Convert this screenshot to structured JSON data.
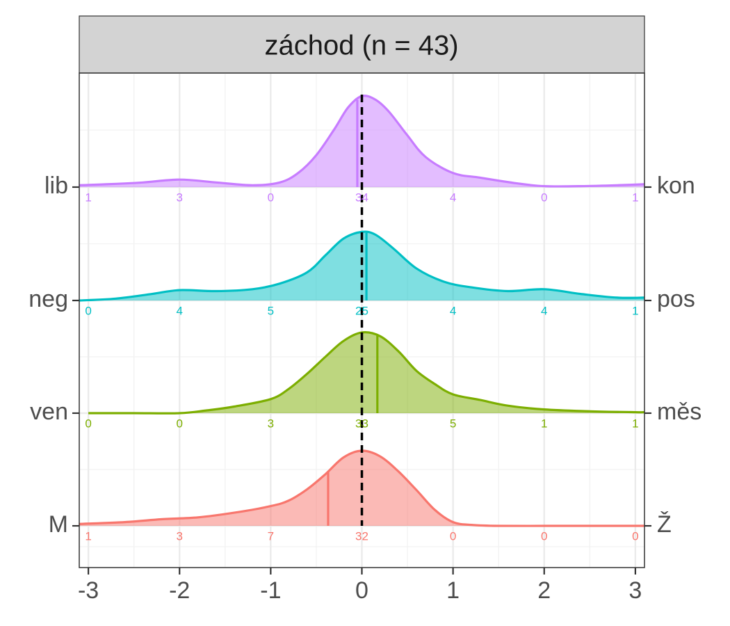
{
  "chart_data": {
    "type": "ridgeline",
    "title": "záchod (n = 43)",
    "xlim": [
      -3.1,
      3.1
    ],
    "x_ticks": [
      -3,
      -2,
      -1,
      0,
      1,
      2,
      3
    ],
    "x_tick_labels": [
      "-3",
      "-2",
      "-1",
      "0",
      "1",
      "2",
      "3"
    ],
    "grid": true,
    "reference_line": {
      "x": 0,
      "style": "dashed",
      "color": "#000000"
    },
    "series": [
      {
        "left_label": "lib",
        "right_label": "kon",
        "color": "#C77CFF",
        "mean": -0.05,
        "count_positions": [
          -3,
          -2,
          -1,
          0,
          1,
          2,
          3
        ],
        "counts": [
          "1",
          "3",
          "0",
          "34",
          "4",
          "0",
          "1"
        ],
        "density": [
          [
            -3.1,
            0.02
          ],
          [
            -2.8,
            0.03
          ],
          [
            -2.4,
            0.05
          ],
          [
            -2,
            0.08
          ],
          [
            -1.6,
            0.05
          ],
          [
            -1.2,
            0.02
          ],
          [
            -0.9,
            0.05
          ],
          [
            -0.7,
            0.15
          ],
          [
            -0.5,
            0.34
          ],
          [
            -0.3,
            0.62
          ],
          [
            -0.15,
            0.85
          ],
          [
            0,
            0.97
          ],
          [
            0.15,
            0.93
          ],
          [
            0.3,
            0.8
          ],
          [
            0.5,
            0.55
          ],
          [
            0.7,
            0.32
          ],
          [
            1,
            0.15
          ],
          [
            1.3,
            0.1
          ],
          [
            1.7,
            0.04
          ],
          [
            2,
            0.01
          ],
          [
            2.4,
            0.01
          ],
          [
            2.8,
            0.02
          ],
          [
            3.1,
            0.03
          ]
        ]
      },
      {
        "left_label": "neg",
        "right_label": "pos",
        "color": "#00BFC4",
        "mean": 0.05,
        "count_positions": [
          -3,
          -2,
          -1,
          0,
          1,
          2,
          3
        ],
        "counts": [
          "0",
          "4",
          "5",
          "25",
          "4",
          "4",
          "1"
        ],
        "density": [
          [
            -3.1,
            0
          ],
          [
            -2.7,
            0.02
          ],
          [
            -2.3,
            0.07
          ],
          [
            -2,
            0.11
          ],
          [
            -1.6,
            0.1
          ],
          [
            -1.2,
            0.12
          ],
          [
            -0.9,
            0.18
          ],
          [
            -0.6,
            0.3
          ],
          [
            -0.4,
            0.48
          ],
          [
            -0.2,
            0.66
          ],
          [
            0,
            0.73
          ],
          [
            0.15,
            0.7
          ],
          [
            0.35,
            0.55
          ],
          [
            0.6,
            0.34
          ],
          [
            0.9,
            0.2
          ],
          [
            1.2,
            0.14
          ],
          [
            1.6,
            0.1
          ],
          [
            2,
            0.12
          ],
          [
            2.4,
            0.07
          ],
          [
            2.8,
            0.03
          ],
          [
            3.1,
            0.03
          ]
        ]
      },
      {
        "left_label": "ven",
        "right_label": "měs",
        "color": "#7CAE00",
        "mean": 0.17,
        "count_positions": [
          -3,
          -2,
          -1,
          0,
          1,
          2,
          3
        ],
        "counts": [
          "0",
          "0",
          "3",
          "33",
          "5",
          "1",
          "1"
        ],
        "density": [
          [
            -3,
            0
          ],
          [
            -2.5,
            0
          ],
          [
            -2,
            0
          ],
          [
            -1.7,
            0.03
          ],
          [
            -1.4,
            0.07
          ],
          [
            -1,
            0.15
          ],
          [
            -0.8,
            0.26
          ],
          [
            -0.6,
            0.42
          ],
          [
            -0.4,
            0.6
          ],
          [
            -0.2,
            0.77
          ],
          [
            0,
            0.86
          ],
          [
            0.2,
            0.82
          ],
          [
            0.4,
            0.66
          ],
          [
            0.6,
            0.45
          ],
          [
            0.8,
            0.31
          ],
          [
            1,
            0.2
          ],
          [
            1.3,
            0.14
          ],
          [
            1.6,
            0.08
          ],
          [
            2,
            0.04
          ],
          [
            2.5,
            0.02
          ],
          [
            3,
            0.01
          ],
          [
            3.1,
            0.01
          ]
        ]
      },
      {
        "left_label": "M",
        "right_label": "Ž",
        "color": "#F8766D",
        "mean": -0.37,
        "count_positions": [
          -3,
          -2,
          -1,
          0,
          1,
          2,
          3
        ],
        "counts": [
          "1",
          "3",
          "7",
          "32",
          "0",
          "0",
          "0"
        ],
        "density": [
          [
            -3.1,
            0.02
          ],
          [
            -2.6,
            0.04
          ],
          [
            -2.2,
            0.07
          ],
          [
            -1.8,
            0.09
          ],
          [
            -1.4,
            0.14
          ],
          [
            -1,
            0.21
          ],
          [
            -0.8,
            0.27
          ],
          [
            -0.6,
            0.39
          ],
          [
            -0.4,
            0.55
          ],
          [
            -0.2,
            0.73
          ],
          [
            0,
            0.8
          ],
          [
            0.2,
            0.74
          ],
          [
            0.4,
            0.58
          ],
          [
            0.6,
            0.38
          ],
          [
            0.8,
            0.17
          ],
          [
            1,
            0.04
          ],
          [
            1.2,
            0.01
          ],
          [
            1.5,
            0
          ],
          [
            2,
            0
          ],
          [
            2.5,
            0
          ],
          [
            3.1,
            0
          ]
        ]
      }
    ]
  }
}
